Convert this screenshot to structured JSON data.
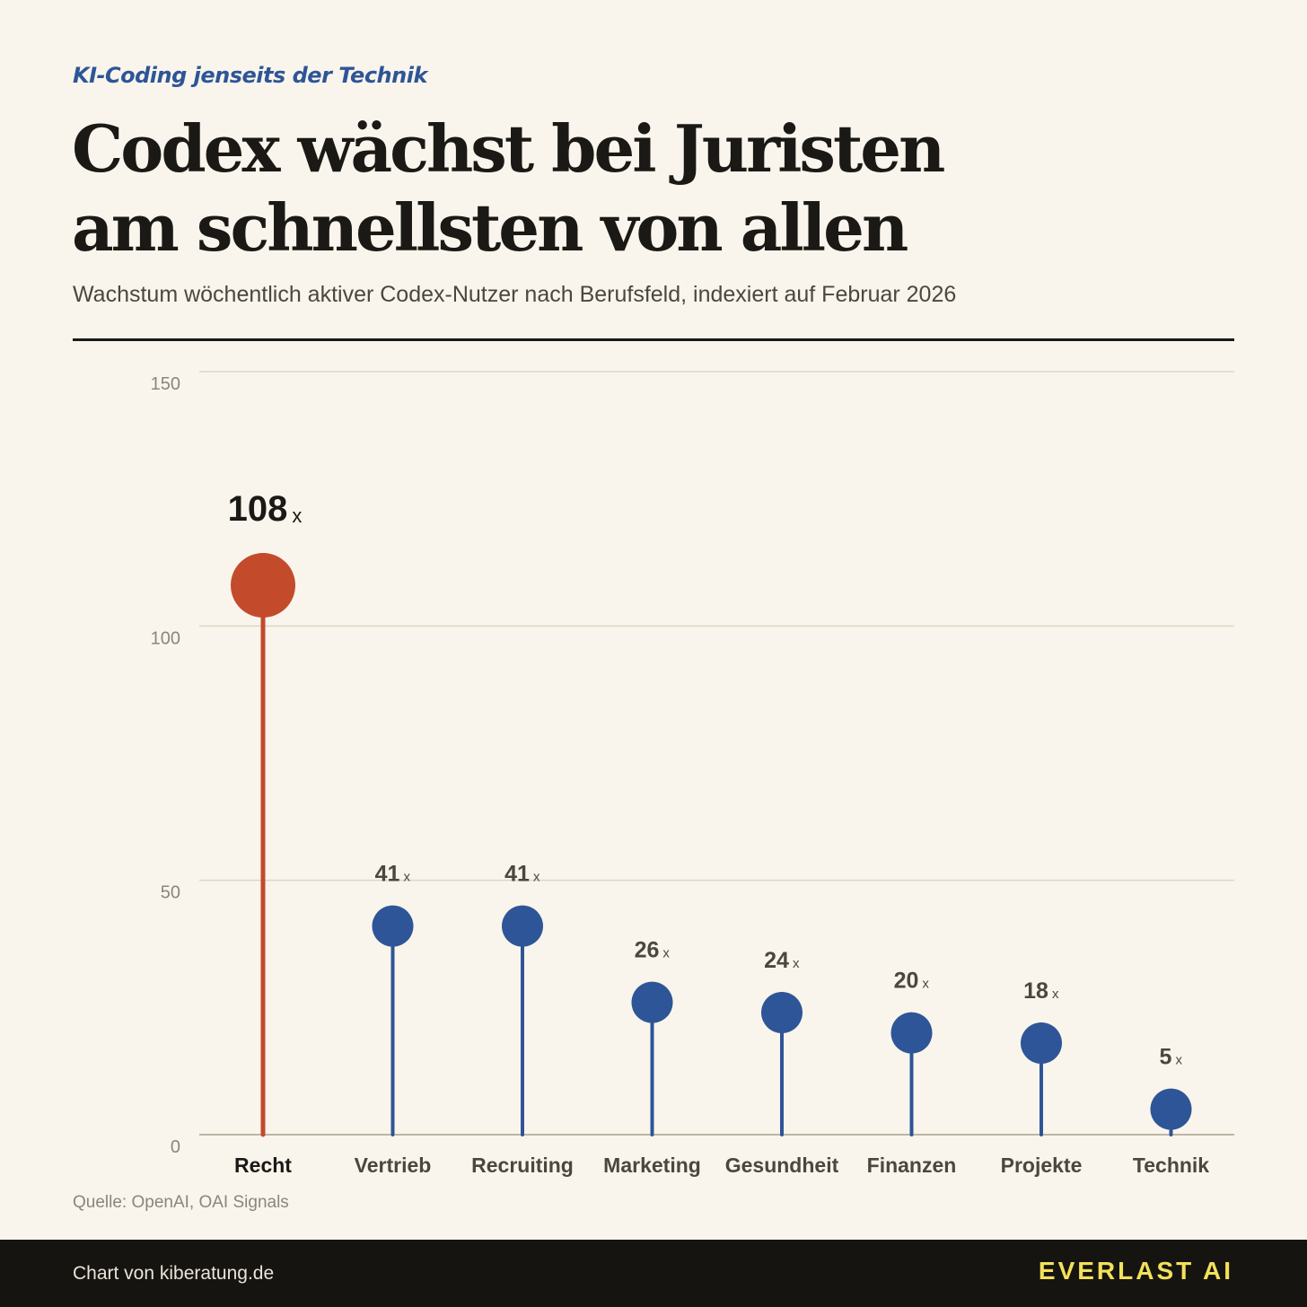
{
  "header": {
    "kicker": "KI-Coding jenseits der Technik",
    "title_line1": "Codex wächst bei Juristen",
    "title_line2": "am schnellsten von allen",
    "subtitle": "Wachstum wöchentlich aktiver Codex-Nutzer nach Berufsfeld, indexiert auf Februar 2026"
  },
  "chart_data": {
    "type": "lollipop",
    "categories": [
      "Recht",
      "Vertrieb",
      "Recruiting",
      "Marketing",
      "Gesundheit",
      "Finanzen",
      "Projekte",
      "Technik"
    ],
    "values": [
      108,
      41,
      41,
      26,
      24,
      20,
      18,
      5
    ],
    "value_labels": [
      "108",
      "41",
      "41",
      "26",
      "24",
      "20",
      "18",
      "5"
    ],
    "value_suffix": "x",
    "highlight_index": 0,
    "ylim": [
      0,
      150
    ],
    "yticks": [
      0,
      50,
      100,
      150
    ],
    "ytick_labels": [
      "0",
      "50",
      "100",
      "150"
    ],
    "grid": true,
    "colors": {
      "highlight": "#c44a2c",
      "default": "#2e5597",
      "grid": "#ddd6c6",
      "baseline": "#bdb6a6",
      "tick_text": "#8a867c",
      "label_text": "#4a4740",
      "highlight_text": "#1b1916"
    }
  },
  "source": "Quelle: OpenAI, OAI Signals",
  "footer": {
    "credit": "Chart von kiberatung.de",
    "brand": "EVERLAST AI"
  }
}
